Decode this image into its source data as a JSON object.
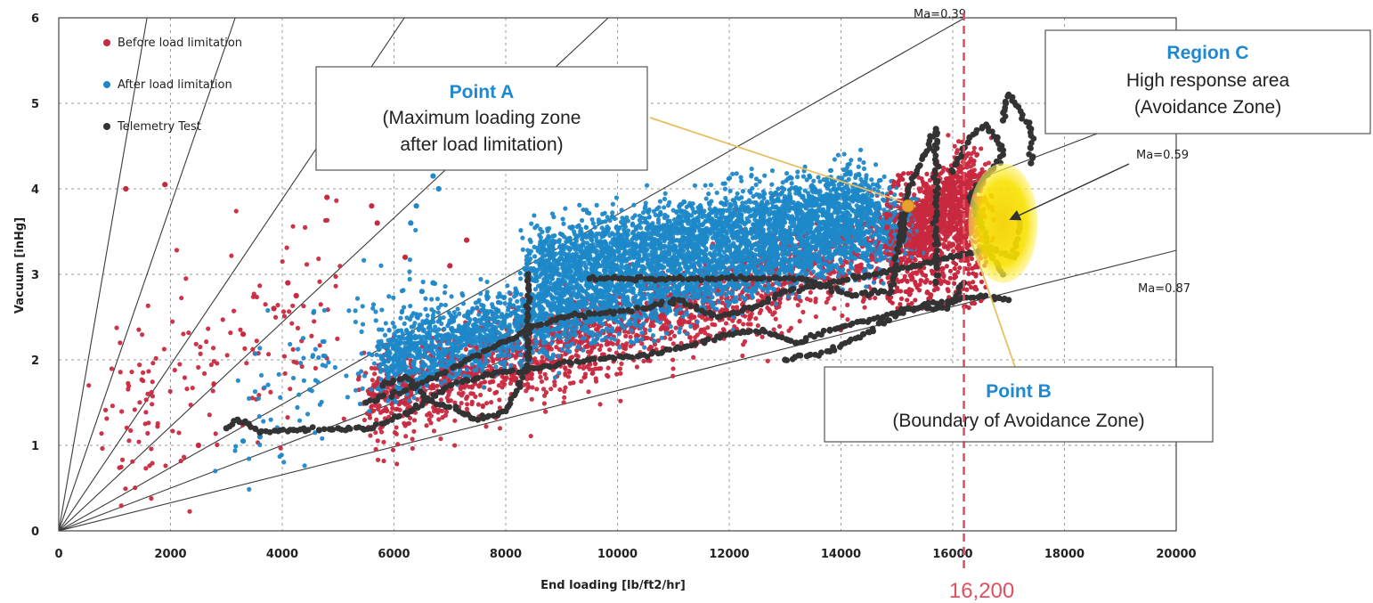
{
  "chart_data": {
    "type": "scatter",
    "title": "",
    "xlabel": "End loading [lb/ft2/hr]",
    "ylabel": "Vacuum [inHg]",
    "xlim": [
      0,
      20000
    ],
    "ylim": [
      0,
      6
    ],
    "x_ticks": [
      "0",
      "2000",
      "4000",
      "6000",
      "8000",
      "10000",
      "12000",
      "14000",
      "16000",
      "18000",
      "20000"
    ],
    "y_ticks": [
      "0",
      "1",
      "2",
      "3",
      "4",
      "5",
      "6"
    ],
    "grid": true,
    "legend_position": "top-left",
    "colors": {
      "before": "#c8293f",
      "after": "#1e88c8",
      "telemetry": "#333333",
      "accent": "#1e88d0",
      "marker_line": "#e05060",
      "zone": "#f4d800"
    },
    "series": [
      {
        "name": "Before load limitation",
        "color": "#c8293f",
        "clusters": [
          {
            "x": [
              5500,
              16600
            ],
            "y_center": [
              1.5,
              3.7
            ],
            "spread": 0.45,
            "count": 2600
          },
          {
            "x": [
              15300,
              16400
            ],
            "y_center": [
              3.4,
              4.2
            ],
            "spread": 0.35,
            "count": 600
          },
          {
            "x": [
              700,
              5000
            ],
            "y_center": [
              1.3,
              2.6
            ],
            "spread": 0.9,
            "count": 160
          }
        ],
        "points": [
          [
            1200,
            4.0
          ],
          [
            1900,
            4.05
          ],
          [
            2500,
            1.0
          ],
          [
            3300,
            2.3
          ],
          [
            3850,
            2.6
          ],
          [
            4250,
            2.75
          ],
          [
            4100,
            2.9
          ],
          [
            5600,
            3.8
          ],
          [
            5700,
            3.6
          ],
          [
            6200,
            3.2
          ],
          [
            7000,
            3.1
          ],
          [
            7300,
            3.4
          ],
          [
            4800,
            3.9
          ]
        ]
      },
      {
        "name": "After load limitation",
        "color": "#1e88c8",
        "clusters": [
          {
            "x": [
              5800,
              15200
            ],
            "y_center": [
              2.0,
              3.6
            ],
            "spread": 0.38,
            "count": 3400
          },
          {
            "x": [
              8500,
              14500
            ],
            "y_center": [
              3.1,
              3.9
            ],
            "spread": 0.35,
            "count": 2400
          },
          {
            "x": [
              3000,
              6800
            ],
            "y_center": [
              1.2,
              2.7
            ],
            "spread": 0.7,
            "count": 120
          }
        ],
        "points": [
          [
            6700,
            4.15
          ],
          [
            6800,
            4.0
          ],
          [
            6400,
            3.8
          ],
          [
            6300,
            3.6
          ],
          [
            6700,
            2.9
          ],
          [
            6500,
            2.8
          ],
          [
            3600,
            1.1
          ],
          [
            3300,
            1.05
          ]
        ]
      },
      {
        "name": "Telemetry Test",
        "color": "#333333",
        "points": [
          [
            3000,
            1.2
          ],
          [
            3200,
            1.3
          ],
          [
            3400,
            1.25
          ],
          [
            3600,
            1.15
          ],
          [
            4200,
            1.18
          ],
          [
            5000,
            1.2
          ],
          [
            5600,
            1.2
          ],
          [
            6300,
            1.4
          ],
          [
            7000,
            1.7
          ],
          [
            7800,
            1.85
          ],
          [
            8500,
            1.9
          ],
          [
            9500,
            2.0
          ],
          [
            10400,
            2.05
          ],
          [
            11200,
            2.15
          ],
          [
            12000,
            2.3
          ],
          [
            12600,
            2.35
          ],
          [
            13200,
            2.2
          ],
          [
            13800,
            2.35
          ],
          [
            14400,
            2.45
          ],
          [
            15000,
            2.55
          ],
          [
            15500,
            2.65
          ],
          [
            16000,
            2.7
          ],
          [
            16500,
            2.75
          ],
          [
            17000,
            2.7
          ],
          [
            5500,
            1.5
          ],
          [
            6400,
            1.7
          ],
          [
            7200,
            1.95
          ],
          [
            7900,
            2.2
          ],
          [
            8400,
            2.35
          ],
          [
            9000,
            2.5
          ],
          [
            9800,
            2.55
          ],
          [
            10500,
            2.6
          ],
          [
            11100,
            2.7
          ],
          [
            11800,
            2.5
          ],
          [
            12400,
            2.6
          ],
          [
            13000,
            2.8
          ],
          [
            13800,
            2.9
          ],
          [
            14600,
            3.0
          ],
          [
            15300,
            3.1
          ],
          [
            16000,
            3.2
          ],
          [
            16600,
            3.3
          ],
          [
            16900,
            3.0
          ],
          [
            8400,
            3.0
          ],
          [
            8400,
            2.6
          ],
          [
            8400,
            2.2
          ],
          [
            8400,
            1.9
          ],
          [
            8000,
            1.4
          ],
          [
            7500,
            1.3
          ],
          [
            6600,
            1.55
          ],
          [
            6200,
            1.8
          ],
          [
            5800,
            1.7
          ],
          [
            9500,
            2.95
          ],
          [
            10200,
            2.95
          ],
          [
            11000,
            2.95
          ],
          [
            11700,
            2.95
          ],
          [
            12500,
            2.95
          ],
          [
            13300,
            2.95
          ],
          [
            14200,
            2.75
          ],
          [
            14900,
            2.8
          ],
          [
            15100,
            3.7
          ],
          [
            15100,
            3.4
          ],
          [
            15200,
            4.0
          ],
          [
            15500,
            4.4
          ],
          [
            15700,
            4.7
          ],
          [
            15700,
            4.3
          ],
          [
            15700,
            3.9
          ],
          [
            15700,
            3.5
          ],
          [
            15700,
            3.2
          ],
          [
            15700,
            2.9
          ],
          [
            16000,
            4.2
          ],
          [
            16300,
            4.6
          ],
          [
            16600,
            4.75
          ],
          [
            16800,
            4.6
          ],
          [
            16900,
            4.4
          ],
          [
            16300,
            3.9
          ],
          [
            16500,
            3.6
          ],
          [
            16700,
            3.3
          ],
          [
            17100,
            3.2
          ],
          [
            17200,
            3.6
          ],
          [
            16900,
            4.8
          ],
          [
            16950,
            5.0
          ],
          [
            17000,
            5.1
          ],
          [
            17400,
            4.7
          ],
          [
            17400,
            4.3
          ],
          [
            16200,
            2.9
          ],
          [
            15900,
            2.6
          ],
          [
            15200,
            2.6
          ],
          [
            14400,
            2.3
          ],
          [
            13800,
            2.1
          ],
          [
            13000,
            2.0
          ]
        ]
      }
    ],
    "ma_lines": [
      {
        "label": "Ma=0.39",
        "slope": 0.00037
      },
      {
        "label": "Ma=0.59",
        "slope": 0.00025
      },
      {
        "label": "Ma=0.87",
        "slope": 0.000164
      }
    ],
    "vertical_marker": {
      "x": 16200,
      "label": "16,200"
    },
    "annotations": [
      {
        "id": "point-a",
        "title": "Point A",
        "lines": [
          "(Maximum loading zone",
          "after load limitation)"
        ],
        "x": 15200,
        "y": 3.8
      },
      {
        "id": "point-b",
        "title": "Point B",
        "lines": [
          "(Boundary of Avoidance Zone)"
        ],
        "x": 16300,
        "y": 3.45
      },
      {
        "id": "region-c",
        "title": "Region C",
        "lines": [
          "High response area",
          "(Avoidance Zone)"
        ],
        "x": 16900,
        "y": 3.6
      }
    ],
    "avoidance_zone": {
      "x_center": 16900,
      "y_center": 3.6,
      "x_radius": 620,
      "y_radius": 0.7
    }
  }
}
